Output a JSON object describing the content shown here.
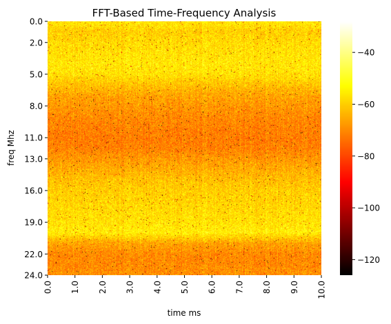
{
  "chart_data": {
    "type": "heatmap",
    "title": "FFT-Based Time-Frequency Analysis",
    "xlabel": "time ms",
    "ylabel": "freq Mhz",
    "x_ticks": [
      "0.0",
      "1.0",
      "2.0",
      "3.0",
      "4.0",
      "5.0",
      "6.0",
      "7.0",
      "8.0",
      "9.0",
      "10.0"
    ],
    "y_ticks": [
      "0.0",
      "2.0",
      "5.0",
      "8.0",
      "11.0",
      "13.0",
      "16.0",
      "19.0",
      "22.0",
      "24.0"
    ],
    "xlim": [
      0,
      10
    ],
    "ylim": [
      0,
      24
    ],
    "y_inverted": true,
    "colormap": "hot",
    "colorbar": {
      "range": [
        -126,
        -28
      ],
      "ticks": [
        -40,
        -60,
        -80,
        -100,
        -120
      ],
      "tick_labels": [
        "−40",
        "−60",
        "−80",
        "−100",
        "−120"
      ]
    },
    "band_profile_db": {
      "freq_mhz": [
        0,
        1,
        2,
        3,
        4,
        5,
        6,
        7,
        8,
        9,
        10,
        11,
        12,
        13,
        14,
        15,
        16,
        17,
        18,
        19,
        20,
        21,
        22,
        23,
        24
      ],
      "mean_power_db": [
        -56,
        -60,
        -58,
        -57,
        -56,
        -57,
        -62,
        -66,
        -68,
        -70,
        -71,
        -72,
        -71,
        -68,
        -65,
        -62,
        -60,
        -59,
        -58,
        -57,
        -55,
        -66,
        -70,
        -70,
        -69
      ]
    }
  }
}
